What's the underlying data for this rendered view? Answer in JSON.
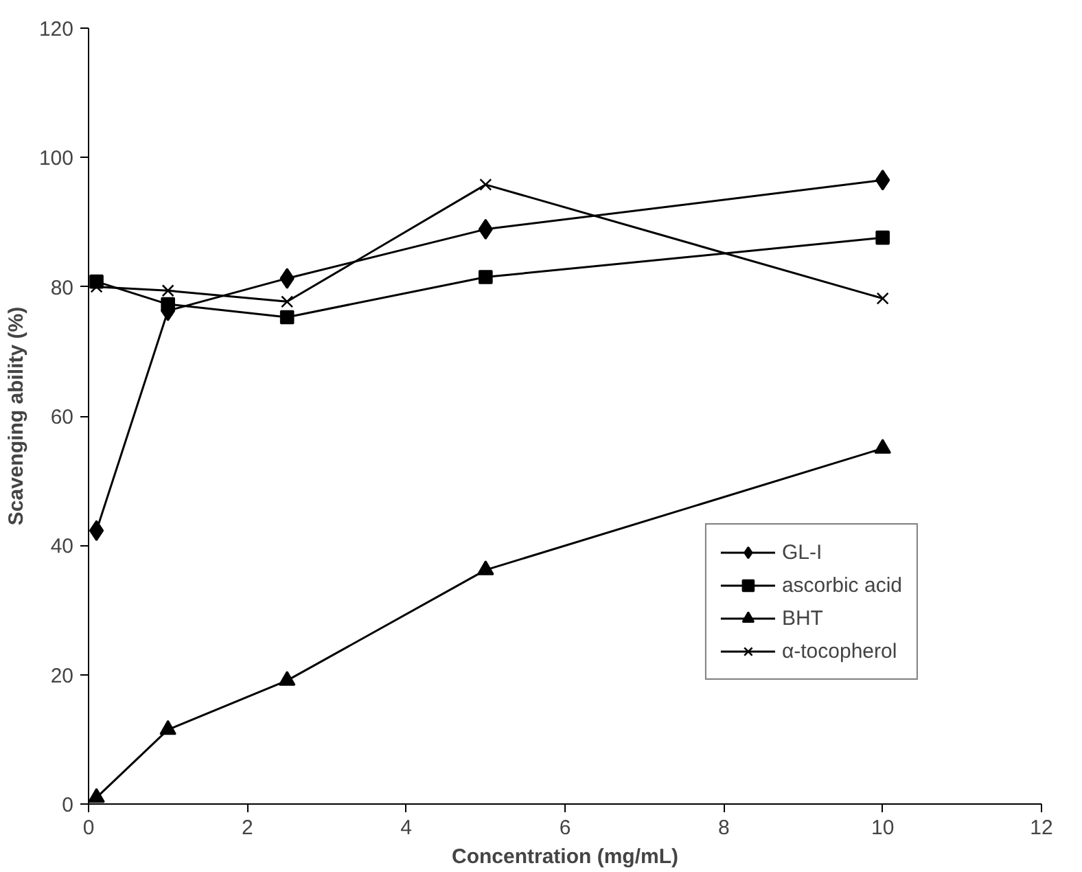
{
  "chart_data": {
    "type": "line",
    "xlabel": "Concentration (mg/mL)",
    "ylabel": "Scavenging ability (%)",
    "x": [
      0.1,
      1,
      2.5,
      5,
      10
    ],
    "series": [
      {
        "name": "GL-I",
        "color": "#000000",
        "marker": "diamond",
        "values": [
          42.3,
          76.3,
          81.3,
          88.9,
          96.5
        ]
      },
      {
        "name": "ascorbic acid",
        "color": "#000000",
        "marker": "square",
        "values": [
          80.8,
          77.3,
          75.3,
          81.5,
          87.6
        ]
      },
      {
        "name": "BHT",
        "color": "#000000",
        "marker": "triangle",
        "values": [
          1.0,
          11.5,
          19.1,
          36.2,
          55.0
        ]
      },
      {
        "name": "α-tocopherol",
        "color": "#000000",
        "marker": "cross",
        "values": [
          80.0,
          79.4,
          77.7,
          95.8,
          78.2
        ]
      }
    ],
    "xlim": [
      0,
      12
    ],
    "xticks": [
      0,
      2,
      4,
      6,
      8,
      10,
      12
    ],
    "ylim": [
      0,
      120
    ],
    "yticks": [
      0,
      20,
      40,
      60,
      80,
      100,
      120
    ],
    "grid": false,
    "legend": "bottom right",
    "line_style": "solid"
  }
}
